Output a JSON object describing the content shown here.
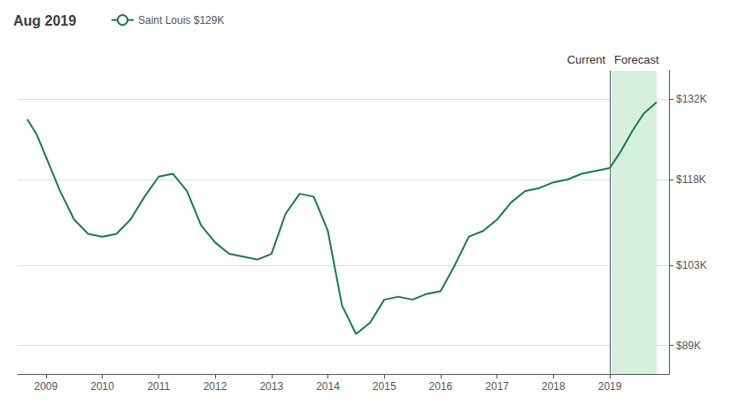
{
  "chart_data": {
    "type": "line",
    "title": "Aug 2019",
    "series": [
      {
        "name": "Saint Louis $129K",
        "color": "#1a7a4a",
        "x": [
          2008.67,
          2008.83,
          2009.0,
          2009.25,
          2009.5,
          2009.75,
          2010.0,
          2010.25,
          2010.5,
          2010.75,
          2011.0,
          2011.25,
          2011.5,
          2011.75,
          2012.0,
          2012.25,
          2012.5,
          2012.75,
          2013.0,
          2013.25,
          2013.5,
          2013.75,
          2014.0,
          2014.25,
          2014.5,
          2014.75,
          2015.0,
          2015.25,
          2015.5,
          2015.75,
          2016.0,
          2016.25,
          2016.5,
          2016.75,
          2017.0,
          2017.25,
          2017.5,
          2017.75,
          2018.0,
          2018.25,
          2018.5,
          2018.75,
          2019.0
        ],
        "values": [
          128500,
          126000,
          122000,
          116000,
          111000,
          108500,
          108000,
          108500,
          111000,
          115000,
          118500,
          119000,
          116000,
          110000,
          107000,
          105000,
          104500,
          104000,
          105000,
          112000,
          115500,
          115000,
          109000,
          96000,
          91000,
          93000,
          97000,
          97500,
          97000,
          98000,
          98500,
          103000,
          108000,
          109000,
          111000,
          114000,
          116000,
          116500,
          117500,
          118000,
          119000,
          119500,
          120000
        ]
      },
      {
        "color": "#1a7a4a",
        "x": [
          2019.0,
          2019.2,
          2019.4,
          2019.6,
          2019.83
        ],
        "values": [
          120000,
          123000,
          126500,
          129500,
          131500
        ]
      }
    ],
    "xlim": [
      2008.5,
      2020.05
    ],
    "xticks": [
      2009,
      2010,
      2011,
      2012,
      2013,
      2014,
      2015,
      2016,
      2017,
      2018,
      2019
    ],
    "ylim": [
      84000,
      137000
    ],
    "yticks": [
      {
        "value": 89000,
        "label": "$89K"
      },
      {
        "value": 103000,
        "label": "$103K"
      },
      {
        "value": 118000,
        "label": "$118K"
      },
      {
        "value": 132000,
        "label": "$132K"
      }
    ],
    "grid": true,
    "shaded": [
      {
        "from": 2019.0,
        "to": 2019.83,
        "color": "#d6f0e0"
      }
    ],
    "vlines": [
      {
        "x": 2019.0,
        "color": "#666666"
      }
    ],
    "annotations": [
      {
        "text": "Current",
        "x": 2019.0,
        "side": "left"
      },
      {
        "text": "Forecast",
        "x": 2019.0,
        "side": "right"
      }
    ]
  }
}
